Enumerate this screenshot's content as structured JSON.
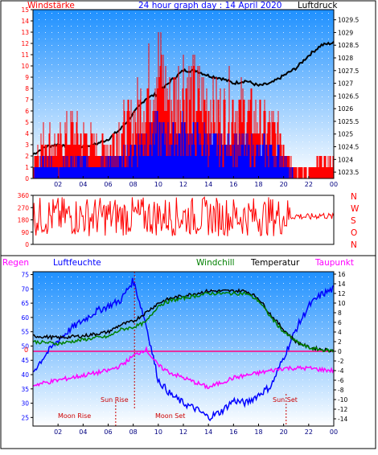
{
  "header": {
    "left_label": "Windstärke",
    "title": "24 hour graph day : 14 April 2020",
    "right_label": "Luftdruck"
  },
  "colors": {
    "red": "#ff0000",
    "blue": "#0000ff",
    "black": "#000000",
    "green": "#008000",
    "magenta": "#ff00ff",
    "sky_top": "#1e90ff",
    "sky_bottom": "#ffffff"
  },
  "panel3": {
    "labels": {
      "regen": "Regen",
      "luftfeuchte": "Luftfeuchte",
      "windchill": "Windchill",
      "temperatur": "Temperatur",
      "taupunkt": "Taupunkt"
    },
    "events": {
      "sun_rise": "Sun Rise",
      "sun_set": "Sun Set",
      "moon_rise": "Moon Rise",
      "moon_set": "Moon Set"
    },
    "zero_label": "0"
  },
  "direction_letters": [
    "N",
    "W",
    "S",
    "O",
    "N"
  ],
  "chart_data": [
    {
      "type": "line",
      "title": "24 hour graph day : 14 April 2020",
      "left_axis": "Windstärke",
      "right_axis": "Luftdruck",
      "x_ticks": [
        "02",
        "04",
        "06",
        "08",
        "10",
        "12",
        "14",
        "16",
        "18",
        "20",
        "22",
        "00"
      ],
      "y_left_ticks": [
        "0",
        "1",
        "2",
        "3",
        "4",
        "5",
        "6",
        "7",
        "8",
        "9",
        "10",
        "11",
        "12",
        "13",
        "14",
        "15"
      ],
      "y_right_ticks": [
        "1023.5",
        "1024",
        "1024.5",
        "1025",
        "1025.5",
        "1026",
        "1026.5",
        "1027",
        "1027.5",
        "1028",
        "1028.5",
        "1029",
        "1029.5"
      ],
      "ylim_left": [
        0,
        15
      ],
      "ylim_right": [
        1023.25,
        1029.9
      ],
      "series": [
        {
          "axis": "right",
          "color": "#000000",
          "points": [
            [
              0,
              1024.2
            ],
            [
              1,
              1024.5
            ],
            [
              2,
              1024.6
            ],
            [
              3,
              1024.4
            ],
            [
              4,
              1024.5
            ],
            [
              5,
              1024.6
            ],
            [
              6,
              1024.8
            ],
            [
              7,
              1025.2
            ],
            [
              8,
              1025.8
            ],
            [
              9,
              1026.4
            ],
            [
              10,
              1026.6
            ],
            [
              11,
              1027.1
            ],
            [
              12,
              1027.5
            ],
            [
              13,
              1027.5
            ],
            [
              14,
              1027.3
            ],
            [
              15,
              1027.2
            ],
            [
              16,
              1027.0
            ],
            [
              17,
              1027.1
            ],
            [
              18,
              1026.9
            ],
            [
              19,
              1027.0
            ],
            [
              20,
              1027.3
            ],
            [
              21,
              1027.6
            ],
            [
              22,
              1028.1
            ],
            [
              23,
              1028.5
            ],
            [
              24,
              1028.6
            ]
          ]
        },
        {
          "axis": "left",
          "color": "#ff0000",
          "points": [
            [
              0,
              3
            ],
            [
              1,
              5
            ],
            [
              2,
              4
            ],
            [
              3,
              6
            ],
            [
              4,
              5
            ],
            [
              5,
              4
            ],
            [
              6,
              4
            ],
            [
              7,
              6
            ],
            [
              8,
              7
            ],
            [
              9,
              10
            ],
            [
              10,
              14
            ],
            [
              11,
              9
            ],
            [
              12,
              12
            ],
            [
              13,
              10
            ],
            [
              14,
              9
            ],
            [
              15,
              8
            ],
            [
              16,
              9
            ],
            [
              17,
              8
            ],
            [
              18,
              7
            ],
            [
              19,
              6
            ],
            [
              20,
              5
            ],
            [
              21,
              1
            ],
            [
              22,
              1
            ],
            [
              23,
              2
            ],
            [
              24,
              2
            ]
          ]
        },
        {
          "axis": "left",
          "color": "#0000ff",
          "points": [
            [
              0,
              1
            ],
            [
              1,
              2
            ],
            [
              2,
              1
            ],
            [
              3,
              2
            ],
            [
              4,
              2
            ],
            [
              5,
              1
            ],
            [
              6,
              2
            ],
            [
              7,
              2
            ],
            [
              8,
              3
            ],
            [
              9,
              4
            ],
            [
              10,
              5
            ],
            [
              11,
              4
            ],
            [
              12,
              5
            ],
            [
              13,
              4
            ],
            [
              14,
              4
            ],
            [
              15,
              3
            ],
            [
              16,
              4
            ],
            [
              17,
              3
            ],
            [
              18,
              3
            ],
            [
              19,
              3
            ],
            [
              20,
              2
            ],
            [
              21,
              0
            ],
            [
              22,
              0
            ],
            [
              23,
              0
            ],
            [
              24,
              0
            ]
          ]
        }
      ]
    },
    {
      "type": "line",
      "x_ticks": [
        "02",
        "04",
        "06",
        "08",
        "10",
        "12",
        "14",
        "16",
        "18",
        "20",
        "22",
        "00"
      ],
      "y_ticks": [
        "0",
        "90",
        "180",
        "270",
        "360"
      ],
      "ylim": [
        0,
        360
      ],
      "series": [
        {
          "color": "#ff0000",
          "points": [
            [
              0,
              150
            ],
            [
              1,
              230
            ],
            [
              2,
              200
            ],
            [
              3,
              280
            ],
            [
              4,
              120
            ],
            [
              5,
              250
            ],
            [
              6,
              190
            ],
            [
              7,
              310
            ],
            [
              8,
              160
            ],
            [
              9,
              220
            ],
            [
              10,
              140
            ],
            [
              11,
              270
            ],
            [
              12,
              180
            ],
            [
              13,
              240
            ],
            [
              14,
              130
            ],
            [
              15,
              260
            ],
            [
              16,
              200
            ],
            [
              17,
              230
            ],
            [
              18,
              170
            ],
            [
              19,
              250
            ],
            [
              20,
              190
            ],
            [
              21,
              210
            ],
            [
              22,
              200
            ],
            [
              23,
              215
            ],
            [
              24,
              200
            ]
          ]
        }
      ]
    },
    {
      "type": "line",
      "x_ticks": [
        "02",
        "04",
        "06",
        "08",
        "10",
        "12",
        "14",
        "16",
        "18",
        "20",
        "22",
        "00"
      ],
      "y_left_ticks": [
        "25",
        "30",
        "35",
        "40",
        "45",
        "50",
        "55",
        "60",
        "65",
        "70",
        "75"
      ],
      "y_right_ticks": [
        "-14",
        "-12",
        "-10",
        "-8",
        "-6",
        "-4",
        "-2",
        "0",
        "2",
        "4",
        "6",
        "8",
        "10",
        "12",
        "14",
        "16"
      ],
      "ylim_left": [
        22,
        76
      ],
      "ylim_right": [
        -15.5,
        16.5
      ],
      "series": [
        {
          "axis": "left",
          "color": "#0000ff",
          "points": [
            [
              0,
              41
            ],
            [
              1,
              47
            ],
            [
              2,
              52
            ],
            [
              3,
              56
            ],
            [
              4,
              59
            ],
            [
              5,
              62
            ],
            [
              6,
              64
            ],
            [
              7,
              66
            ],
            [
              8,
              73
            ],
            [
              9,
              58
            ],
            [
              10,
              38
            ],
            [
              11,
              33
            ],
            [
              12,
              30
            ],
            [
              13,
              28
            ],
            [
              14,
              25
            ],
            [
              15,
              27
            ],
            [
              16,
              31
            ],
            [
              17,
              30
            ],
            [
              18,
              33
            ],
            [
              19,
              36
            ],
            [
              20,
              46
            ],
            [
              21,
              56
            ],
            [
              22,
              64
            ],
            [
              23,
              68
            ],
            [
              24,
              70
            ]
          ]
        },
        {
          "axis": "right",
          "color": "#000000",
          "points": [
            [
              0,
              3.2
            ],
            [
              1,
              3.0
            ],
            [
              2,
              2.8
            ],
            [
              3,
              3.0
            ],
            [
              4,
              3.2
            ],
            [
              5,
              3.6
            ],
            [
              6,
              4.0
            ],
            [
              7,
              5.5
            ],
            [
              8,
              6.2
            ],
            [
              9,
              8.0
            ],
            [
              10,
              10.0
            ],
            [
              11,
              11.0
            ],
            [
              12,
              11.5
            ],
            [
              13,
              12.0
            ],
            [
              14,
              12.5
            ],
            [
              15,
              12.5
            ],
            [
              16,
              12.5
            ],
            [
              17,
              12.5
            ],
            [
              18,
              11.0
            ],
            [
              19,
              7.5
            ],
            [
              20,
              4.5
            ],
            [
              21,
              2.0
            ],
            [
              22,
              0.8
            ],
            [
              23,
              0.4
            ],
            [
              24,
              0.2
            ]
          ]
        },
        {
          "axis": "right",
          "color": "#008000",
          "points": [
            [
              0,
              2.0
            ],
            [
              1,
              1.8
            ],
            [
              2,
              1.6
            ],
            [
              3,
              2.0
            ],
            [
              4,
              2.4
            ],
            [
              5,
              2.8
            ],
            [
              6,
              3.0
            ],
            [
              7,
              4.5
            ],
            [
              8,
              5.0
            ],
            [
              9,
              6.0
            ],
            [
              10,
              9.5
            ],
            [
              11,
              10.5
            ],
            [
              12,
              11.0
            ],
            [
              13,
              11.5
            ],
            [
              14,
              12.0
            ],
            [
              15,
              12.0
            ],
            [
              16,
              12.0
            ],
            [
              17,
              12.0
            ],
            [
              18,
              10.5
            ],
            [
              19,
              7.0
            ],
            [
              20,
              4.0
            ],
            [
              21,
              2.0
            ],
            [
              22,
              0.7
            ],
            [
              23,
              0.3
            ],
            [
              24,
              0.1
            ]
          ]
        },
        {
          "axis": "right",
          "color": "#ff00ff",
          "points": [
            [
              0,
              -7.0
            ],
            [
              1,
              -6.5
            ],
            [
              2,
              -6.0
            ],
            [
              3,
              -5.5
            ],
            [
              4,
              -5.0
            ],
            [
              5,
              -4.5
            ],
            [
              6,
              -4.0
            ],
            [
              7,
              -3.0
            ],
            [
              8,
              -1.0
            ],
            [
              9,
              0.5
            ],
            [
              10,
              -3.0
            ],
            [
              11,
              -4.5
            ],
            [
              12,
              -5.5
            ],
            [
              13,
              -6.5
            ],
            [
              14,
              -7.5
            ],
            [
              15,
              -6.5
            ],
            [
              16,
              -5.5
            ],
            [
              17,
              -5.0
            ],
            [
              18,
              -4.5
            ],
            [
              19,
              -4.0
            ],
            [
              20,
              -3.5
            ],
            [
              21,
              -3.5
            ],
            [
              22,
              -3.5
            ],
            [
              23,
              -3.8
            ],
            [
              24,
              -4.0
            ]
          ]
        }
      ]
    }
  ]
}
